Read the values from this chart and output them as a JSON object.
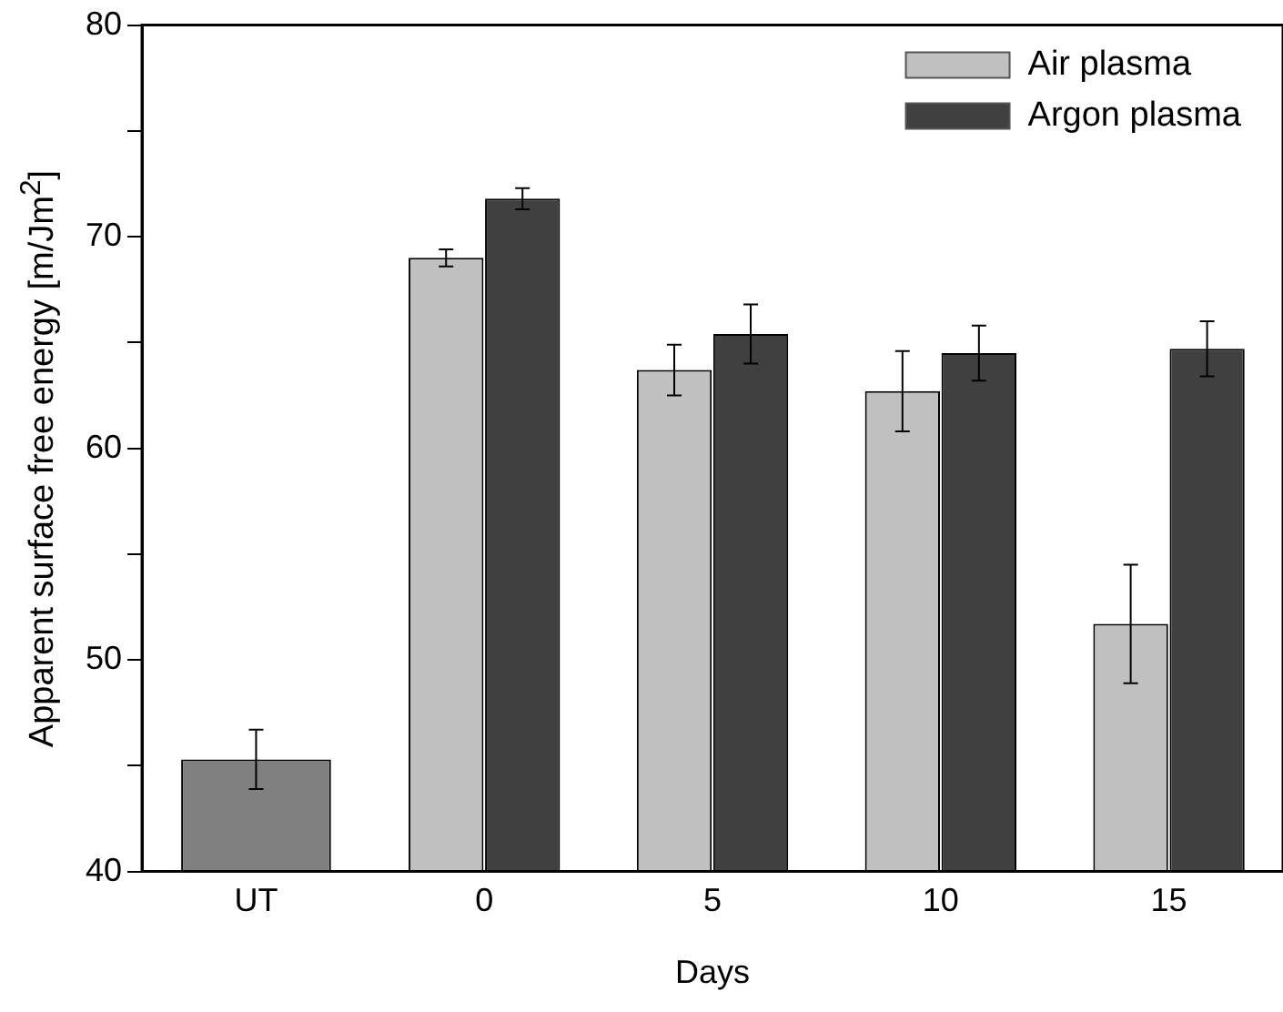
{
  "chart_data": {
    "type": "bar",
    "categories": [
      "UT",
      "0",
      "5",
      "10",
      "15"
    ],
    "series": [
      {
        "name": "Air plasma",
        "color": "#c0c0c0",
        "values": [
          null,
          69.0,
          63.7,
          62.7,
          51.7
        ],
        "errors": [
          null,
          0.4,
          1.2,
          1.9,
          2.8
        ]
      },
      {
        "name": "Argon plasma",
        "color": "#404040",
        "values": [
          null,
          71.8,
          65.4,
          64.5,
          64.7
        ],
        "errors": [
          null,
          0.5,
          1.4,
          1.3,
          1.3
        ]
      },
      {
        "color": "#808080",
        "values": [
          45.3,
          null,
          null,
          null,
          null
        ],
        "errors": [
          1.4,
          null,
          null,
          null,
          null
        ]
      }
    ],
    "xlabel": "Days",
    "ylabel": "Apparent surface free energy [m/Jm$^{2}$]",
    "ylim": [
      40,
      80
    ],
    "yticks": [
      40,
      {
        "value": 45,
        "label": null
      },
      50,
      {
        "value": 55,
        "label": null
      },
      60,
      {
        "value": 65,
        "label": null
      },
      70,
      {
        "value": 75,
        "label": null
      },
      80
    ],
    "legend": "top right",
    "grid": false
  }
}
